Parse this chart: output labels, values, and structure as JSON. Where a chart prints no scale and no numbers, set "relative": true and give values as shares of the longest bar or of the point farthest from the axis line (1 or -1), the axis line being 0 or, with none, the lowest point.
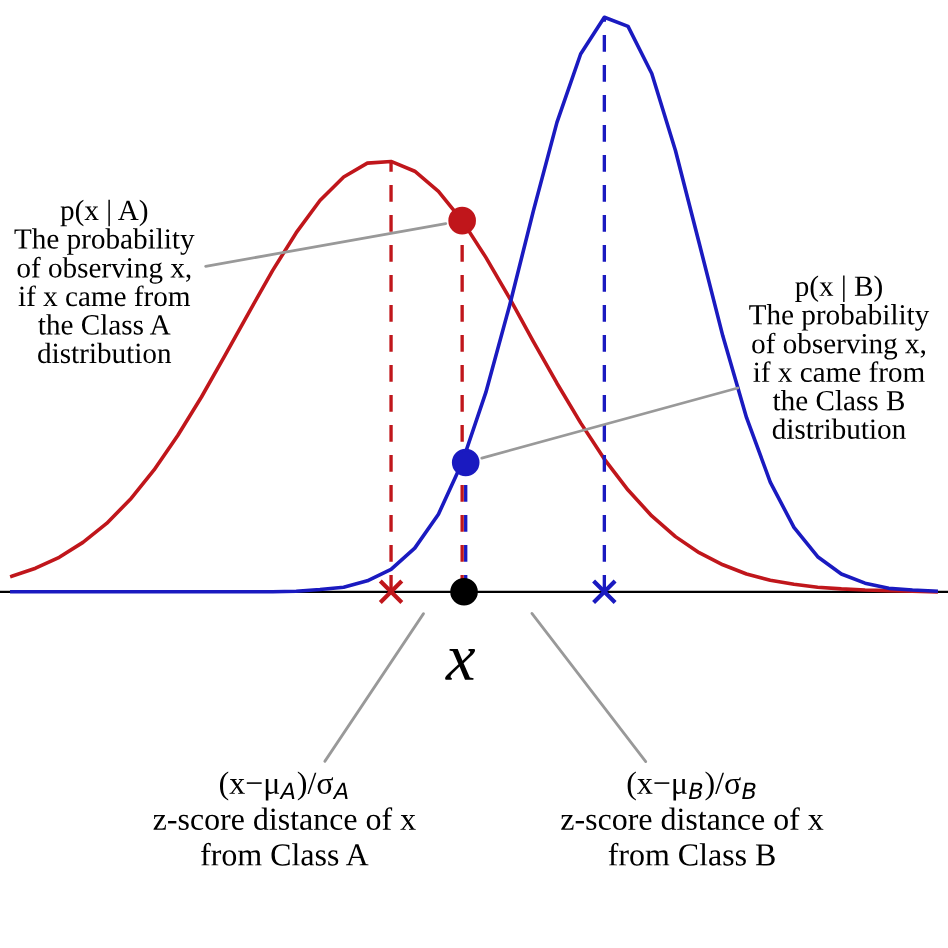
{
  "chart_data": {
    "type": "line",
    "relative": true,
    "categories": [
      null,
      null,
      null,
      null,
      null,
      null,
      null,
      null,
      null,
      null,
      null,
      null,
      null,
      null,
      null,
      null,
      null,
      null,
      null,
      null,
      null,
      null,
      null,
      null,
      null,
      null,
      null,
      null,
      null,
      null,
      null,
      null,
      null,
      null,
      null,
      null,
      null,
      null,
      null,
      null
    ],
    "series": [
      {
        "color": "#c0161b",
        "values": [
          0.027,
          0.041,
          0.06,
          0.086,
          0.119,
          0.161,
          0.212,
          0.272,
          0.339,
          0.412,
          0.486,
          0.559,
          0.625,
          0.681,
          0.722,
          0.746,
          0.749,
          0.732,
          0.697,
          0.646,
          0.582,
          0.511,
          0.436,
          0.363,
          0.294,
          0.231,
          0.177,
          0.132,
          0.096,
          0.068,
          0.047,
          0.031,
          0.02,
          0.013,
          0.008,
          0.005,
          0.003,
          0.002,
          0.001,
          0.0
        ]
      },
      {
        "color": "#1a1ac0",
        "values": [
          0,
          0,
          0,
          0,
          0,
          0,
          0,
          0,
          0,
          0,
          0,
          0.0,
          0.001,
          0.004,
          0.008,
          0.019,
          0.039,
          0.076,
          0.135,
          0.225,
          0.347,
          0.498,
          0.662,
          0.817,
          0.936,
          1.0,
          0.984,
          0.902,
          0.768,
          0.607,
          0.445,
          0.303,
          0.191,
          0.112,
          0.061,
          0.031,
          0.015,
          0.006,
          0.003,
          0.001
        ]
      }
    ],
    "annotations": [
      "p(x | A)\nThe probability\nof observing x,\nif x came from\nthe Class A\ndistribution",
      "p(x | B)\nThe probability\nof observing x,\nif x came from\nthe Class B\ndistribution",
      "x",
      "(x−μ$_{A}$)/σ$_{A}$\nz-score distance of x\nfrom Class A",
      "(x−μ$_{B}$)/σ$_{B}$\nz-score distance of x\nfrom Class B"
    ]
  }
}
